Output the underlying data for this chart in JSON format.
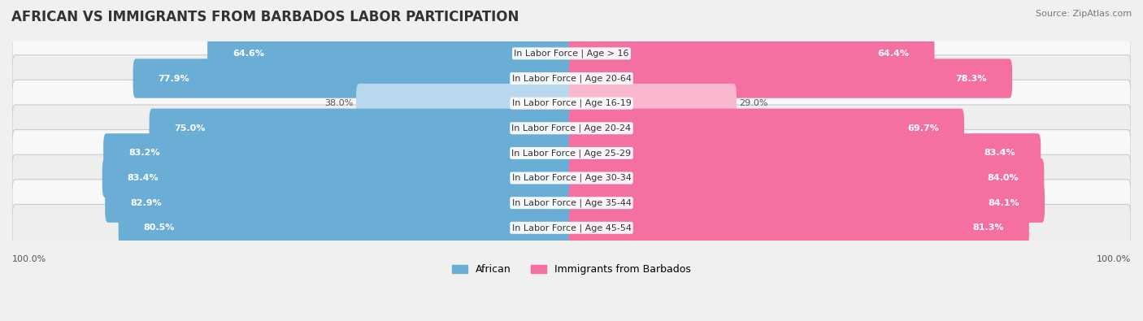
{
  "title": "AFRICAN VS IMMIGRANTS FROM BARBADOS LABOR PARTICIPATION",
  "source": "Source: ZipAtlas.com",
  "categories": [
    "In Labor Force | Age > 16",
    "In Labor Force | Age 20-64",
    "In Labor Force | Age 16-19",
    "In Labor Force | Age 20-24",
    "In Labor Force | Age 25-29",
    "In Labor Force | Age 30-34",
    "In Labor Force | Age 35-44",
    "In Labor Force | Age 45-54"
  ],
  "african_values": [
    64.6,
    77.9,
    38.0,
    75.0,
    83.2,
    83.4,
    82.9,
    80.5
  ],
  "barbados_values": [
    64.4,
    78.3,
    29.0,
    69.7,
    83.4,
    84.0,
    84.1,
    81.3
  ],
  "african_color": "#6aaed6",
  "african_color_light": "#b8d8ee",
  "barbados_color": "#f470a0",
  "barbados_color_light": "#f9b8cf",
  "bar_height": 0.58,
  "bg_color": "#f0f0f0",
  "row_bg_even": "#f8f8f8",
  "row_bg_odd": "#eeeeee",
  "max_val": 100.0,
  "title_fontsize": 12,
  "label_fontsize": 8,
  "value_fontsize": 8,
  "legend_fontsize": 9,
  "axis_label_fontsize": 8,
  "low_threshold": 50
}
